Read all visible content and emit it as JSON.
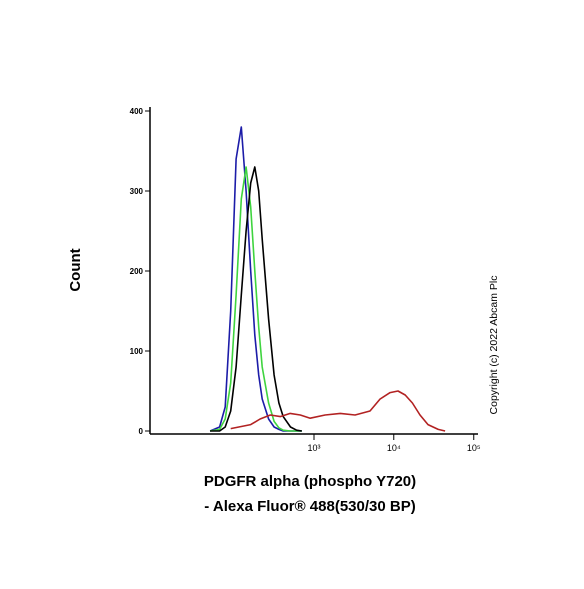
{
  "chart_data": {
    "type": "histogram-overlay",
    "y_label": "Count",
    "x_label_lines": [
      "PDGFR alpha (phospho Y720)",
      "- Alexa Fluor® 488(530/30 BP)"
    ],
    "copyright": "Copyright (c) 2022 Abcam Plc",
    "xscale": "biexponential",
    "xlim": [
      -670,
      113000
    ],
    "xticks": [
      {
        "value": 1000,
        "label": "10³"
      },
      {
        "value": 10000,
        "label": "10⁴"
      },
      {
        "value": 100000,
        "label": "10⁵"
      }
    ],
    "ylim": [
      0,
      405
    ],
    "yticks": [
      0,
      100,
      200,
      300,
      400
    ],
    "series": [
      {
        "color": "#1c1ca8",
        "x": [
          -70,
          -25,
          0,
          25,
          50,
          75,
          100,
          125,
          150,
          175,
          200,
          250,
          300,
          350,
          400,
          500,
          600,
          700
        ],
        "values": [
          0,
          5,
          30,
          150,
          340,
          380,
          300,
          200,
          120,
          70,
          40,
          15,
          5,
          2,
          0,
          0,
          0,
          0
        ]
      },
      {
        "color": "#3fd43f",
        "x": [
          -70,
          -25,
          0,
          25,
          50,
          75,
          100,
          125,
          150,
          175,
          200,
          250,
          300,
          350,
          400,
          500,
          600,
          700
        ],
        "values": [
          0,
          2,
          15,
          60,
          170,
          290,
          330,
          280,
          200,
          130,
          80,
          35,
          12,
          4,
          1,
          0,
          0,
          0
        ]
      },
      {
        "color": "#000000",
        "x": [
          -70,
          -25,
          0,
          25,
          50,
          75,
          100,
          125,
          150,
          175,
          200,
          250,
          300,
          350,
          400,
          500,
          600,
          700
        ],
        "values": [
          0,
          0,
          5,
          25,
          80,
          170,
          250,
          310,
          330,
          300,
          240,
          140,
          70,
          35,
          18,
          5,
          1,
          0
        ]
      },
      {
        "color": "#b22222",
        "x": [
          25,
          125,
          185,
          265,
          365,
          495,
          670,
          895,
          1380,
          2140,
          3280,
          5050,
          6750,
          9000,
          11300,
          13900,
          17100,
          21300,
          26800,
          35900,
          43800
        ],
        "values": [
          3,
          8,
          15,
          20,
          18,
          22,
          20,
          16,
          20,
          22,
          20,
          25,
          40,
          48,
          50,
          45,
          35,
          20,
          8,
          2,
          0
        ]
      }
    ]
  }
}
